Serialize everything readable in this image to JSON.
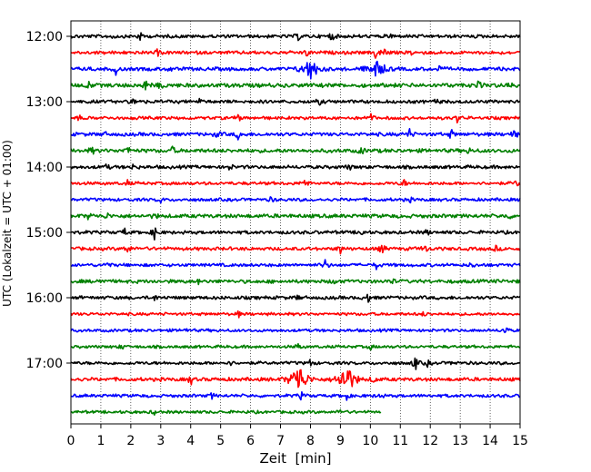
{
  "chart_data": {
    "type": "line",
    "title": "",
    "xlabel": "Zeit  [min]",
    "ylabel": "UTC (Lokalzeit = UTC + 01:00)",
    "xlim": [
      0,
      15
    ],
    "x_ticks": [
      "0",
      "1",
      "2",
      "3",
      "4",
      "5",
      "6",
      "7",
      "8",
      "9",
      "10",
      "11",
      "12",
      "13",
      "14",
      "15"
    ],
    "y_ticks": [
      "12:00",
      "13:00",
      "14:00",
      "15:00",
      "16:00",
      "17:00"
    ],
    "grid": "vertical dotted",
    "trace_colors": [
      "#000000",
      "#ff0000",
      "#0000ff",
      "#008000"
    ],
    "traces": [
      {
        "start": "12:00",
        "end_min": 15,
        "amp": 1.0,
        "events": [
          [
            1.4,
            3
          ],
          [
            2.3,
            5
          ],
          [
            7.6,
            4
          ],
          [
            8.7,
            6
          ],
          [
            10.7,
            3
          ]
        ]
      },
      {
        "start": "12:15",
        "end_min": 15,
        "amp": 1.0,
        "events": [
          [
            2.9,
            3
          ],
          [
            7.9,
            5
          ],
          [
            10.2,
            9
          ],
          [
            10.5,
            6
          ],
          [
            11.4,
            3
          ]
        ]
      },
      {
        "start": "12:30",
        "end_min": 15,
        "amp": 1.1,
        "events": [
          [
            1.5,
            5
          ],
          [
            3.3,
            3
          ],
          [
            8.0,
            12
          ],
          [
            10.2,
            10
          ],
          [
            12.3,
            3
          ]
        ]
      },
      {
        "start": "12:45",
        "end_min": 15,
        "amp": 1.3,
        "events": [
          [
            0.6,
            4
          ],
          [
            2.5,
            7
          ],
          [
            3.0,
            4
          ],
          [
            13.6,
            4
          ],
          [
            14.6,
            3
          ]
        ]
      },
      {
        "start": "13:00",
        "end_min": 15,
        "amp": 1.0,
        "events": [
          [
            2.1,
            5
          ],
          [
            4.3,
            3
          ],
          [
            8.3,
            3
          ],
          [
            12.2,
            3
          ]
        ]
      },
      {
        "start": "13:15",
        "end_min": 15,
        "amp": 0.9,
        "events": [
          [
            0.3,
            3
          ],
          [
            5.6,
            3
          ],
          [
            10.0,
            6
          ],
          [
            12.9,
            4
          ]
        ]
      },
      {
        "start": "13:30",
        "end_min": 15,
        "amp": 1.1,
        "events": [
          [
            1.1,
            3
          ],
          [
            4.9,
            4
          ],
          [
            5.6,
            6
          ],
          [
            11.3,
            6
          ],
          [
            12.7,
            5
          ],
          [
            14.8,
            6
          ]
        ]
      },
      {
        "start": "13:45",
        "end_min": 15,
        "amp": 1.2,
        "events": [
          [
            0.7,
            4
          ],
          [
            1.9,
            5
          ],
          [
            3.4,
            4
          ],
          [
            9.7,
            4
          ],
          [
            13.3,
            3
          ]
        ]
      },
      {
        "start": "14:00",
        "end_min": 15,
        "amp": 1.0,
        "events": [
          [
            1.2,
            3
          ],
          [
            2.1,
            4
          ],
          [
            5.3,
            4
          ],
          [
            9.3,
            3
          ]
        ]
      },
      {
        "start": "14:15",
        "end_min": 15,
        "amp": 0.9,
        "events": [
          [
            1.9,
            3
          ],
          [
            7.8,
            6
          ],
          [
            11.1,
            5
          ],
          [
            14.9,
            4
          ]
        ]
      },
      {
        "start": "14:30",
        "end_min": 15,
        "amp": 0.9,
        "events": [
          [
            3.0,
            3
          ],
          [
            6.7,
            3
          ],
          [
            11.3,
            3
          ]
        ]
      },
      {
        "start": "14:45",
        "end_min": 15,
        "amp": 1.2,
        "events": [
          [
            0.6,
            4
          ],
          [
            1.2,
            3
          ],
          [
            2.8,
            3
          ],
          [
            14.6,
            3
          ]
        ]
      },
      {
        "start": "15:00",
        "end_min": 15,
        "amp": 1.0,
        "events": [
          [
            1.8,
            4
          ],
          [
            2.8,
            8
          ],
          [
            9.7,
            4
          ],
          [
            11.9,
            3
          ]
        ]
      },
      {
        "start": "15:15",
        "end_min": 15,
        "amp": 1.0,
        "events": [
          [
            1.9,
            7
          ],
          [
            9.0,
            5
          ],
          [
            10.4,
            6
          ],
          [
            11.8,
            6
          ],
          [
            14.2,
            3
          ]
        ]
      },
      {
        "start": "15:30",
        "end_min": 15,
        "amp": 0.9,
        "events": [
          [
            1.2,
            4
          ],
          [
            8.5,
            7
          ],
          [
            10.2,
            4
          ],
          [
            13.4,
            3
          ]
        ]
      },
      {
        "start": "15:45",
        "end_min": 15,
        "amp": 1.1,
        "events": [
          [
            1.0,
            4
          ],
          [
            4.3,
            3
          ],
          [
            8.8,
            3
          ],
          [
            10.7,
            3
          ]
        ]
      },
      {
        "start": "16:00",
        "end_min": 15,
        "amp": 1.0,
        "events": [
          [
            2.8,
            3
          ],
          [
            7.6,
            3
          ],
          [
            9.9,
            7
          ]
        ]
      },
      {
        "start": "16:15",
        "end_min": 15,
        "amp": 0.8,
        "events": [
          [
            5.6,
            3
          ],
          [
            11.8,
            3
          ]
        ]
      },
      {
        "start": "16:30",
        "end_min": 15,
        "amp": 0.8,
        "events": [
          [
            3.8,
            3
          ],
          [
            14.5,
            5
          ]
        ]
      },
      {
        "start": "16:45",
        "end_min": 15,
        "amp": 0.8,
        "events": [
          [
            1.7,
            3
          ],
          [
            7.6,
            4
          ],
          [
            10.0,
            3
          ]
        ]
      },
      {
        "start": "17:00",
        "end_min": 15,
        "amp": 0.9,
        "events": [
          [
            5.3,
            3
          ],
          [
            8.0,
            4
          ],
          [
            11.5,
            9
          ],
          [
            11.9,
            4
          ],
          [
            12.8,
            3
          ]
        ]
      },
      {
        "start": "17:15",
        "end_min": 15,
        "amp": 1.1,
        "events": [
          [
            4.0,
            6
          ],
          [
            7.6,
            18
          ],
          [
            9.2,
            18
          ],
          [
            10.1,
            4
          ]
        ]
      },
      {
        "start": "17:30",
        "end_min": 15,
        "amp": 0.9,
        "events": [
          [
            4.7,
            3
          ],
          [
            7.7,
            4
          ],
          [
            9.2,
            5
          ],
          [
            10.3,
            3
          ]
        ]
      },
      {
        "start": "17:45",
        "end_min": 10.35,
        "amp": 0.8,
        "events": [
          [
            2.8,
            3
          ],
          [
            9.0,
            3
          ]
        ]
      }
    ]
  }
}
